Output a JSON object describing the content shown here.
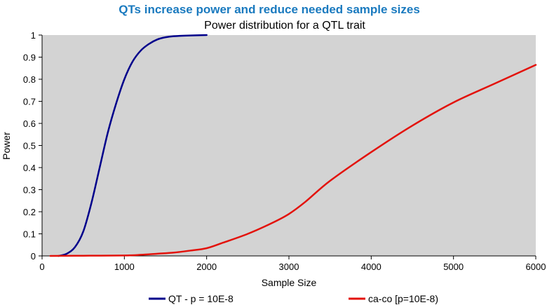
{
  "colors": {
    "title": "#1a7abf",
    "plot_background": "#d3d3d3",
    "axis": "#000000",
    "series_qt": "#00008b",
    "series_caco": "#e3120b"
  },
  "chart_data": {
    "type": "line",
    "title": "QTs increase power and reduce needed sample sizes",
    "subtitle": "Power  distribution for a QTL trait",
    "xlabel": "Sample Size",
    "ylabel": "Power",
    "xlim": [
      0,
      6000
    ],
    "ylim": [
      0,
      1
    ],
    "xticks": [
      0,
      1000,
      2000,
      3000,
      4000,
      5000,
      6000
    ],
    "yticks": [
      0,
      0.1,
      0.2,
      0.3,
      0.4,
      0.5,
      0.6,
      0.7,
      0.8,
      0.9,
      1
    ],
    "legend_position": "bottom",
    "series": [
      {
        "name": "QT - p = 10E-8",
        "color": "#00008b",
        "points": [
          [
            200,
            0.0
          ],
          [
            300,
            0.01
          ],
          [
            400,
            0.04
          ],
          [
            500,
            0.11
          ],
          [
            600,
            0.24
          ],
          [
            700,
            0.4
          ],
          [
            800,
            0.56
          ],
          [
            900,
            0.69
          ],
          [
            1000,
            0.8
          ],
          [
            1100,
            0.88
          ],
          [
            1200,
            0.93
          ],
          [
            1300,
            0.96
          ],
          [
            1400,
            0.98
          ],
          [
            1500,
            0.99
          ],
          [
            1600,
            0.995
          ],
          [
            1800,
            0.998
          ],
          [
            2000,
            1.0
          ]
        ]
      },
      {
        "name": "ca-co [p=10E-8)",
        "color": "#e3120b",
        "points": [
          [
            100,
            0.0
          ],
          [
            500,
            0.001
          ],
          [
            1000,
            0.002
          ],
          [
            1200,
            0.005
          ],
          [
            1400,
            0.01
          ],
          [
            1600,
            0.015
          ],
          [
            1800,
            0.024
          ],
          [
            2000,
            0.035
          ],
          [
            2200,
            0.06
          ],
          [
            2500,
            0.1
          ],
          [
            2800,
            0.15
          ],
          [
            3000,
            0.19
          ],
          [
            3200,
            0.245
          ],
          [
            3500,
            0.34
          ],
          [
            4000,
            0.47
          ],
          [
            4500,
            0.59
          ],
          [
            5000,
            0.695
          ],
          [
            5500,
            0.78
          ],
          [
            6000,
            0.865
          ]
        ]
      }
    ]
  }
}
